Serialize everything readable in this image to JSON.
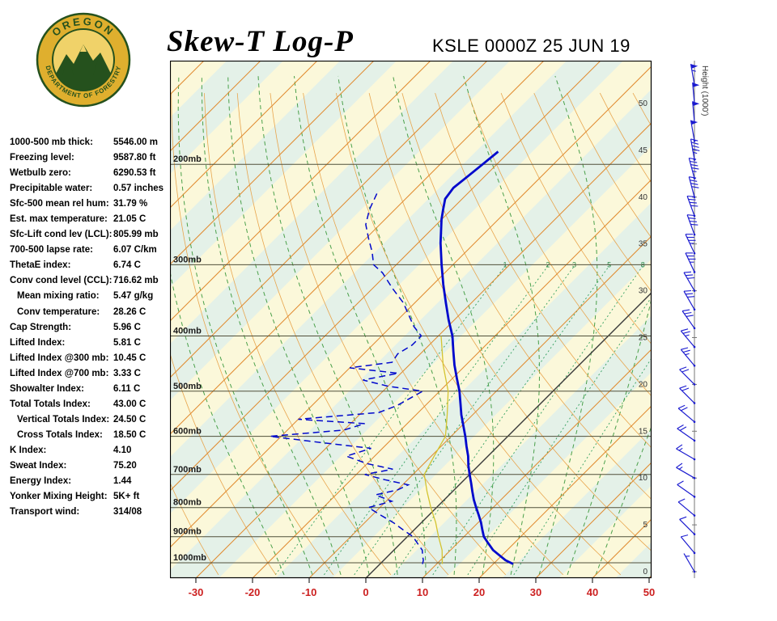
{
  "header": {
    "title": "Skew-T Log-P",
    "station": "KSLE 0000Z 25 JUN 19",
    "logo_top": "OREGON",
    "logo_bottom": "DEPARTMENT OF FORESTRY"
  },
  "indices": [
    {
      "label": "1000-500 mb thick:",
      "value": "5546.00 m",
      "indent": false
    },
    {
      "label": "Freezing level:",
      "value": "9587.80 ft",
      "indent": false
    },
    {
      "label": "Wetbulb zero:",
      "value": "6290.53 ft",
      "indent": false
    },
    {
      "label": "Precipitable water:",
      "value": "0.57 inches",
      "indent": false
    },
    {
      "label": "Sfc-500 mean rel hum:",
      "value": "31.79 %",
      "indent": false
    },
    {
      "label": "Est. max temperature:",
      "value": "21.05 C",
      "indent": false
    },
    {
      "label": "Sfc-Lift cond lev (LCL):",
      "value": "805.99 mb",
      "indent": false
    },
    {
      "label": "700-500 lapse rate:",
      "value": "6.07 C/km",
      "indent": false
    },
    {
      "label": "ThetaE index:",
      "value": "6.74 C",
      "indent": false
    },
    {
      "label": "Conv cond level (CCL):",
      "value": "716.62 mb",
      "indent": false
    },
    {
      "label": "Mean mixing ratio:",
      "value": "5.47 g/kg",
      "indent": true
    },
    {
      "label": "Conv temperature:",
      "value": "28.26 C",
      "indent": true
    },
    {
      "label": "Cap Strength:",
      "value": "5.96 C",
      "indent": false
    },
    {
      "label": "Lifted Index:",
      "value": "5.81 C",
      "indent": false
    },
    {
      "label": "Lifted Index @300 mb:",
      "value": "10.45 C",
      "indent": false
    },
    {
      "label": "Lifted Index @700 mb:",
      "value": "3.33 C",
      "indent": false
    },
    {
      "label": "Showalter Index:",
      "value": "6.11 C",
      "indent": false
    },
    {
      "label": "Total Totals Index:",
      "value": "43.00 C",
      "indent": false
    },
    {
      "label": "Vertical Totals Index:",
      "value": "24.50 C",
      "indent": true
    },
    {
      "label": "Cross Totals Index:",
      "value": "18.50 C",
      "indent": true
    },
    {
      "label": "K Index:",
      "value": "4.10",
      "indent": false
    },
    {
      "label": "Sweat Index:",
      "value": "75.20",
      "indent": false
    },
    {
      "label": "Energy Index:",
      "value": "1.44",
      "indent": false
    },
    {
      "label": "Yonker Mixing Height:",
      "value": "5K+ ft",
      "indent": false
    },
    {
      "label": "Transport wind:",
      "value": "314/08",
      "indent": false
    }
  ],
  "chart_data": {
    "type": "line",
    "title": "Skew-T Log-P",
    "station": "KSLE 0000Z 25 JUN 19",
    "x_axis": {
      "ticks_c": [
        -30,
        -20,
        -10,
        0,
        10,
        20,
        30,
        40,
        50
      ],
      "units": "C"
    },
    "pressure_levels_mb": [
      200,
      300,
      400,
      500,
      600,
      700,
      800,
      900,
      1000
    ],
    "pressure_labels": [
      "200mb",
      "300mb",
      "400mb",
      "500mb",
      "600mb",
      "700mb",
      "800mb",
      "900mb",
      "1000mb"
    ],
    "height_ticks_kft": [
      0,
      5,
      10,
      15,
      20,
      25,
      30,
      35,
      40,
      45,
      50
    ],
    "height_axis_label": "Height (1000')",
    "isotherm_step_c": 10,
    "dry_adiabats_c": {
      "from": -30,
      "to": 180,
      "step": 10
    },
    "moist_adiabats_c": [
      -15,
      -10,
      -5,
      0,
      5,
      10,
      15,
      20,
      25,
      30,
      35,
      40
    ],
    "mixing_ratio_lines_gkg": [
      1,
      2,
      3,
      5,
      8,
      12,
      20
    ],
    "sounding": {
      "temperature": {
        "pressure_mb": [
          1005,
          990,
          975,
          950,
          925,
          900,
          875,
          850,
          825,
          800,
          775,
          750,
          725,
          700,
          675,
          650,
          625,
          600,
          575,
          550,
          525,
          500,
          475,
          450,
          425,
          400,
          375,
          350,
          325,
          300,
          275,
          250,
          240,
          230,
          220,
          210,
          200,
          190
        ],
        "temp_c": [
          23.5,
          21.5,
          20.0,
          17.5,
          15.5,
          13.5,
          12.0,
          10.5,
          8.8,
          7.0,
          5.2,
          3.5,
          1.8,
          0.0,
          -1.8,
          -3.5,
          -5.5,
          -7.5,
          -9.7,
          -12.0,
          -14.2,
          -16.5,
          -19.2,
          -22.0,
          -24.7,
          -27.5,
          -31.0,
          -34.5,
          -38.2,
          -42.0,
          -46.0,
          -50.0,
          -51.5,
          -53.0,
          -53.5,
          -53.0,
          -52.5,
          -52.0
        ]
      },
      "dewpoint": {
        "pressure_mb": [
          1005,
          990,
          975,
          950,
          925,
          900,
          875,
          850,
          825,
          800,
          780,
          760,
          745,
          730,
          715,
          700,
          685,
          670,
          650,
          630,
          615,
          600,
          585,
          570,
          560,
          545,
          530,
          515,
          500,
          490,
          478,
          465,
          455,
          445,
          430,
          415,
          400,
          385,
          370,
          350,
          330,
          310,
          300,
          285,
          270,
          255,
          240,
          225
        ],
        "temp_c": [
          7.5,
          7.0,
          6.2,
          5.0,
          3.0,
          1.0,
          -2.0,
          -5.0,
          -8.5,
          -12.0,
          -9.0,
          -13.0,
          -10.0,
          -9.0,
          -14.0,
          -18.5,
          -14.5,
          -20.0,
          -25.0,
          -22.0,
          -32.0,
          -42.0,
          -30.0,
          -27.5,
          -40.0,
          -27.0,
          -25.0,
          -24.0,
          -23.0,
          -30.0,
          -35.5,
          -30.5,
          -40.0,
          -33.5,
          -34.0,
          -33.0,
          -33.0,
          -36.0,
          -38.5,
          -42.0,
          -46.5,
          -51.0,
          -54.0,
          -56.5,
          -59.5,
          -62.5,
          -64.5,
          -66.0
        ]
      },
      "wetbulb": {
        "pressure_mb": [
          1005,
          950,
          900,
          850,
          800,
          750,
          700,
          650,
          600,
          550,
          500,
          450,
          400
        ],
        "temp_c": [
          11.0,
          8.5,
          5.5,
          2.5,
          -1.0,
          -4.5,
          -8.0,
          -9.5,
          -11.0,
          -14.5,
          -18.5,
          -24.0,
          -29.5
        ]
      }
    },
    "winds_kft_dir_kt": [
      [
        0,
        330,
        5
      ],
      [
        2,
        320,
        8
      ],
      [
        4,
        315,
        8
      ],
      [
        6,
        310,
        10
      ],
      [
        8,
        305,
        12
      ],
      [
        10,
        300,
        15
      ],
      [
        12,
        300,
        15
      ],
      [
        14,
        305,
        18
      ],
      [
        16,
        310,
        20
      ],
      [
        18,
        315,
        20
      ],
      [
        20,
        315,
        22
      ],
      [
        22,
        320,
        25
      ],
      [
        24,
        320,
        25
      ],
      [
        26,
        325,
        28
      ],
      [
        28,
        330,
        30
      ],
      [
        30,
        330,
        32
      ],
      [
        32,
        335,
        35
      ],
      [
        34,
        335,
        35
      ],
      [
        36,
        340,
        38
      ],
      [
        38,
        340,
        40
      ],
      [
        40,
        345,
        42
      ],
      [
        42,
        345,
        45
      ],
      [
        44,
        350,
        45
      ],
      [
        46,
        350,
        48
      ],
      [
        48,
        355,
        50
      ],
      [
        50,
        355,
        52
      ],
      [
        52,
        350,
        55
      ]
    ],
    "colors": {
      "temperature": "#0008cc",
      "dewpoint": "#0008cc",
      "wetbulb": "#d4c430",
      "isotherm": "#e08a2e",
      "dry_adiabat": "#e8a54e",
      "moist_adiabat": "#4aa04a",
      "mixing_ratio": "#33a060",
      "freezing_isotherm": "#3a3a3a",
      "axis_label": "#cc2020",
      "wind_barb": "#1b1bd0",
      "band_yellow": "#fbf8da",
      "band_green": "#e4f1e8"
    }
  }
}
